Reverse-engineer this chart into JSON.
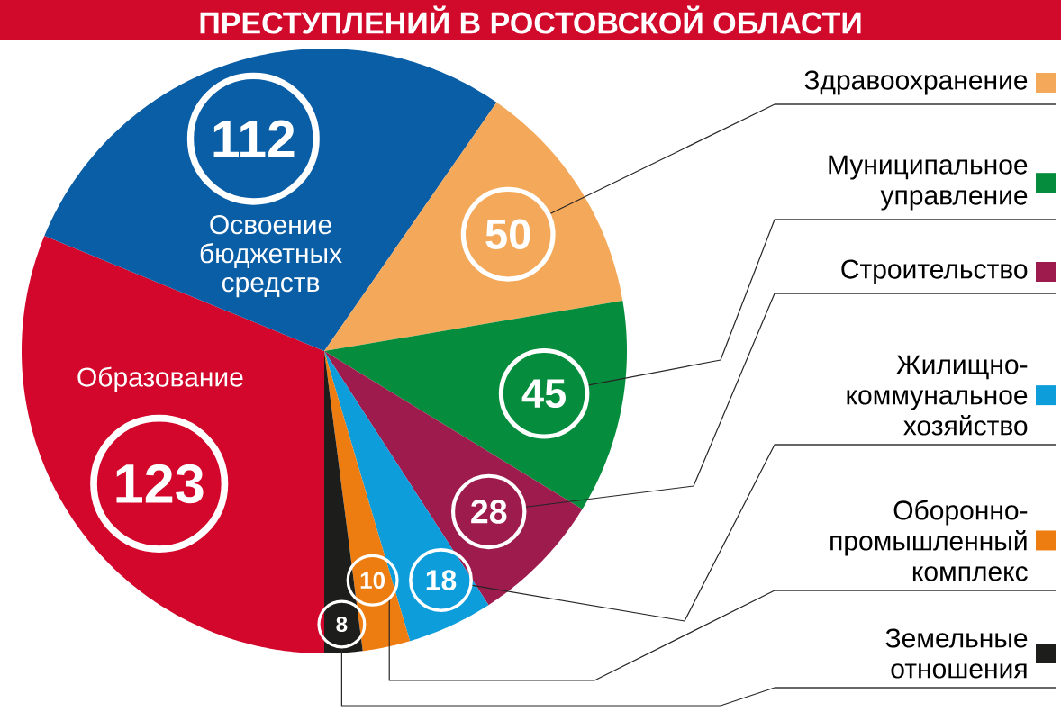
{
  "chart_data": {
    "type": "pie",
    "title": "ПРЕСТУПЛЕНИЙ В РОСТОВСКОЙ ОБЛАСТИ",
    "categories": [
      "Образование",
      "Освоение бюджетных средств",
      "Здравоохранение",
      "Муниципальное управление",
      "Строительство",
      "Жилищно-коммунальное хозяйство",
      "Оборонно-промышленный комплекс",
      "Земельные отношения"
    ],
    "values": [
      123,
      112,
      50,
      45,
      28,
      18,
      10,
      8
    ],
    "colors": [
      "#d2072b",
      "#0a5ea6",
      "#f4a85a",
      "#058c3c",
      "#9e1b4e",
      "#0d9ddb",
      "#ee7d11",
      "#1d1d1b"
    ],
    "data_labels": true,
    "legend": "right"
  }
}
